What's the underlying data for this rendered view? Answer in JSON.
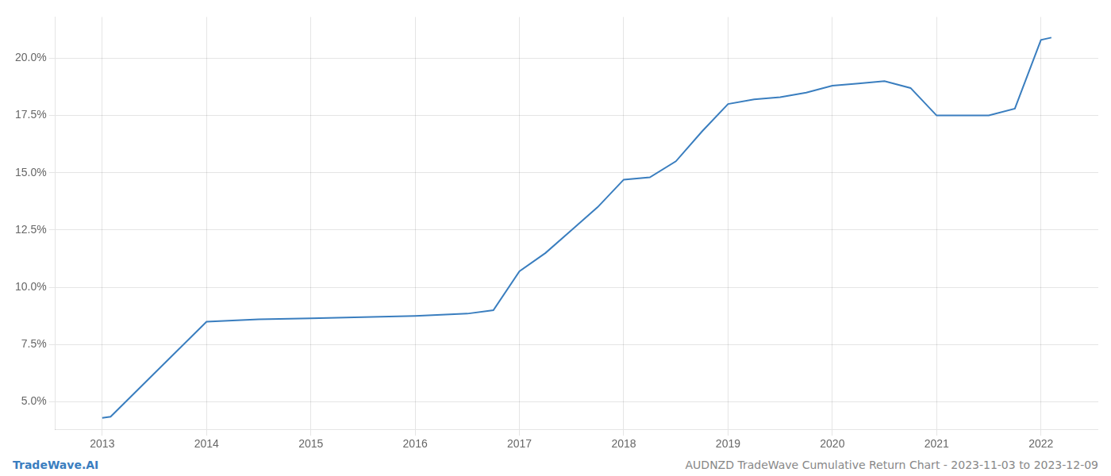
{
  "chart_data": {
    "type": "line",
    "x": [
      2013.0,
      2013.08,
      2014.0,
      2014.5,
      2015.0,
      2015.5,
      2016.0,
      2016.5,
      2016.75,
      2017.0,
      2017.25,
      2017.5,
      2017.75,
      2018.0,
      2018.25,
      2018.5,
      2018.75,
      2019.0,
      2019.25,
      2019.5,
      2019.75,
      2020.0,
      2020.25,
      2020.5,
      2020.75,
      2021.0,
      2021.25,
      2021.5,
      2021.75,
      2022.0,
      2022.1
    ],
    "values": [
      4.3,
      4.35,
      8.5,
      8.6,
      8.65,
      8.7,
      8.75,
      8.85,
      9.0,
      10.7,
      11.5,
      12.5,
      13.5,
      14.7,
      14.8,
      15.5,
      16.8,
      18.0,
      18.2,
      18.3,
      18.5,
      18.8,
      18.9,
      19.0,
      18.7,
      17.5,
      17.5,
      17.5,
      17.8,
      20.8,
      20.9
    ],
    "color": "#3a7ebf",
    "xlim": [
      2012.55,
      2022.55
    ],
    "xticks": [
      2013,
      2014,
      2015,
      2016,
      2017,
      2018,
      2019,
      2020,
      2021,
      2022
    ],
    "ylim": [
      3.8,
      21.8
    ],
    "yticks": [
      {
        "value": 5.0,
        "label": "5.0%"
      },
      {
        "value": 7.5,
        "label": "7.5%"
      },
      {
        "value": 10.0,
        "label": "10.0%"
      },
      {
        "value": 12.5,
        "label": "12.5%"
      },
      {
        "value": 15.0,
        "label": "15.0%"
      },
      {
        "value": 17.5,
        "label": "17.5%"
      },
      {
        "value": 20.0,
        "label": "20.0%"
      }
    ],
    "grid": true,
    "annotations": [
      "TradeWave.AI",
      "AUDNZD TradeWave Cumulative Return Chart - 2023-11-03 to 2023-12-09"
    ]
  }
}
